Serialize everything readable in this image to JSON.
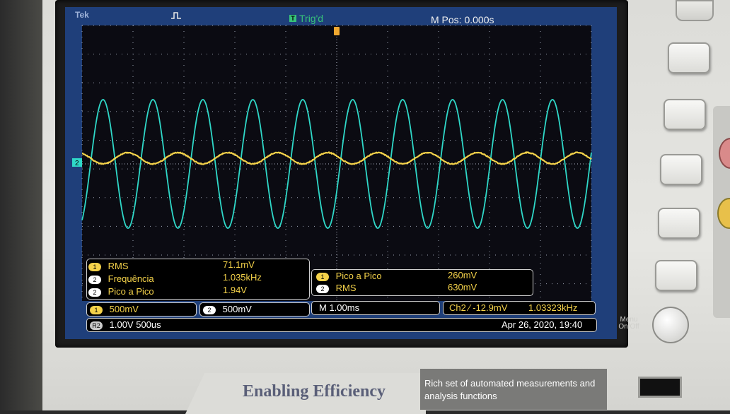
{
  "top_bar": {
    "brand": "Tek",
    "trigger_icon_label": "T",
    "trigger_state": "Trig'd",
    "m_pos": "M Pos: 0.000s"
  },
  "channel_marker": "2",
  "measurements_left": [
    {
      "ch": "1",
      "label": "RMS",
      "value": "71.1mV"
    },
    {
      "ch": "2",
      "label": "Frequência",
      "value": "1.035kHz"
    },
    {
      "ch": "2",
      "label": "Pico a Pico",
      "value": "1.94V"
    }
  ],
  "measurements_right": [
    {
      "ch": "1",
      "label": "Pico a Pico",
      "value": "260mV"
    },
    {
      "ch": "2",
      "label": "RMS",
      "value": "630mV"
    }
  ],
  "settings": {
    "ch1": {
      "chip": "1",
      "scale": "500mV"
    },
    "ch2": {
      "chip": "2",
      "scale": "500mV"
    },
    "timebase": "M 1.00ms",
    "trigger": "Ch2 ⁄ -12.9mV",
    "trigger_freq": "1.03323kHz",
    "math": {
      "chip": "R2",
      "text": "1.00V 500us"
    },
    "datetime": "Apr 26, 2020, 19:40"
  },
  "device": {
    "menu_off": "Menu\nOn/Off",
    "banner_title": "Enabling Efficiency",
    "banner_sub": "Rich set of automated measurements and analysis functions"
  },
  "colors": {
    "screen_bg": "#1f3f7a",
    "plot_bg": "#0b0b12",
    "ch1_trace": "#f4d24a",
    "ch2_trace": "#2fd8c8",
    "trigger_green": "#37c37a",
    "marker_orange": "#f0a830"
  }
}
